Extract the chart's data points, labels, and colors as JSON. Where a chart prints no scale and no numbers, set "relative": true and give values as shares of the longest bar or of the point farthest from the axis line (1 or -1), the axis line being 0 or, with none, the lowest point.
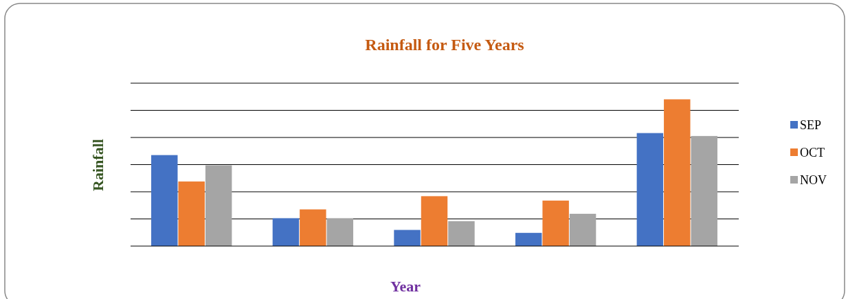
{
  "chart_data": {
    "type": "bar",
    "title": "Rainfall for Five Years",
    "xlabel": "Year",
    "ylabel": "Rainfall",
    "relative": true,
    "grid": true,
    "legend": "right",
    "categories": [
      null,
      null,
      null,
      null,
      null
    ],
    "series": [
      {
        "name": "SEP",
        "color": "#4472c4",
        "values": [
          0.62,
          0.19,
          0.11,
          0.09,
          0.77
        ]
      },
      {
        "name": "OCT",
        "color": "#ed7d31",
        "values": [
          0.44,
          0.25,
          0.34,
          0.31,
          1
        ]
      },
      {
        "name": "NOV",
        "color": "#a5a5a5",
        "values": [
          0.55,
          0.19,
          0.17,
          0.22,
          0.75
        ]
      }
    ]
  }
}
